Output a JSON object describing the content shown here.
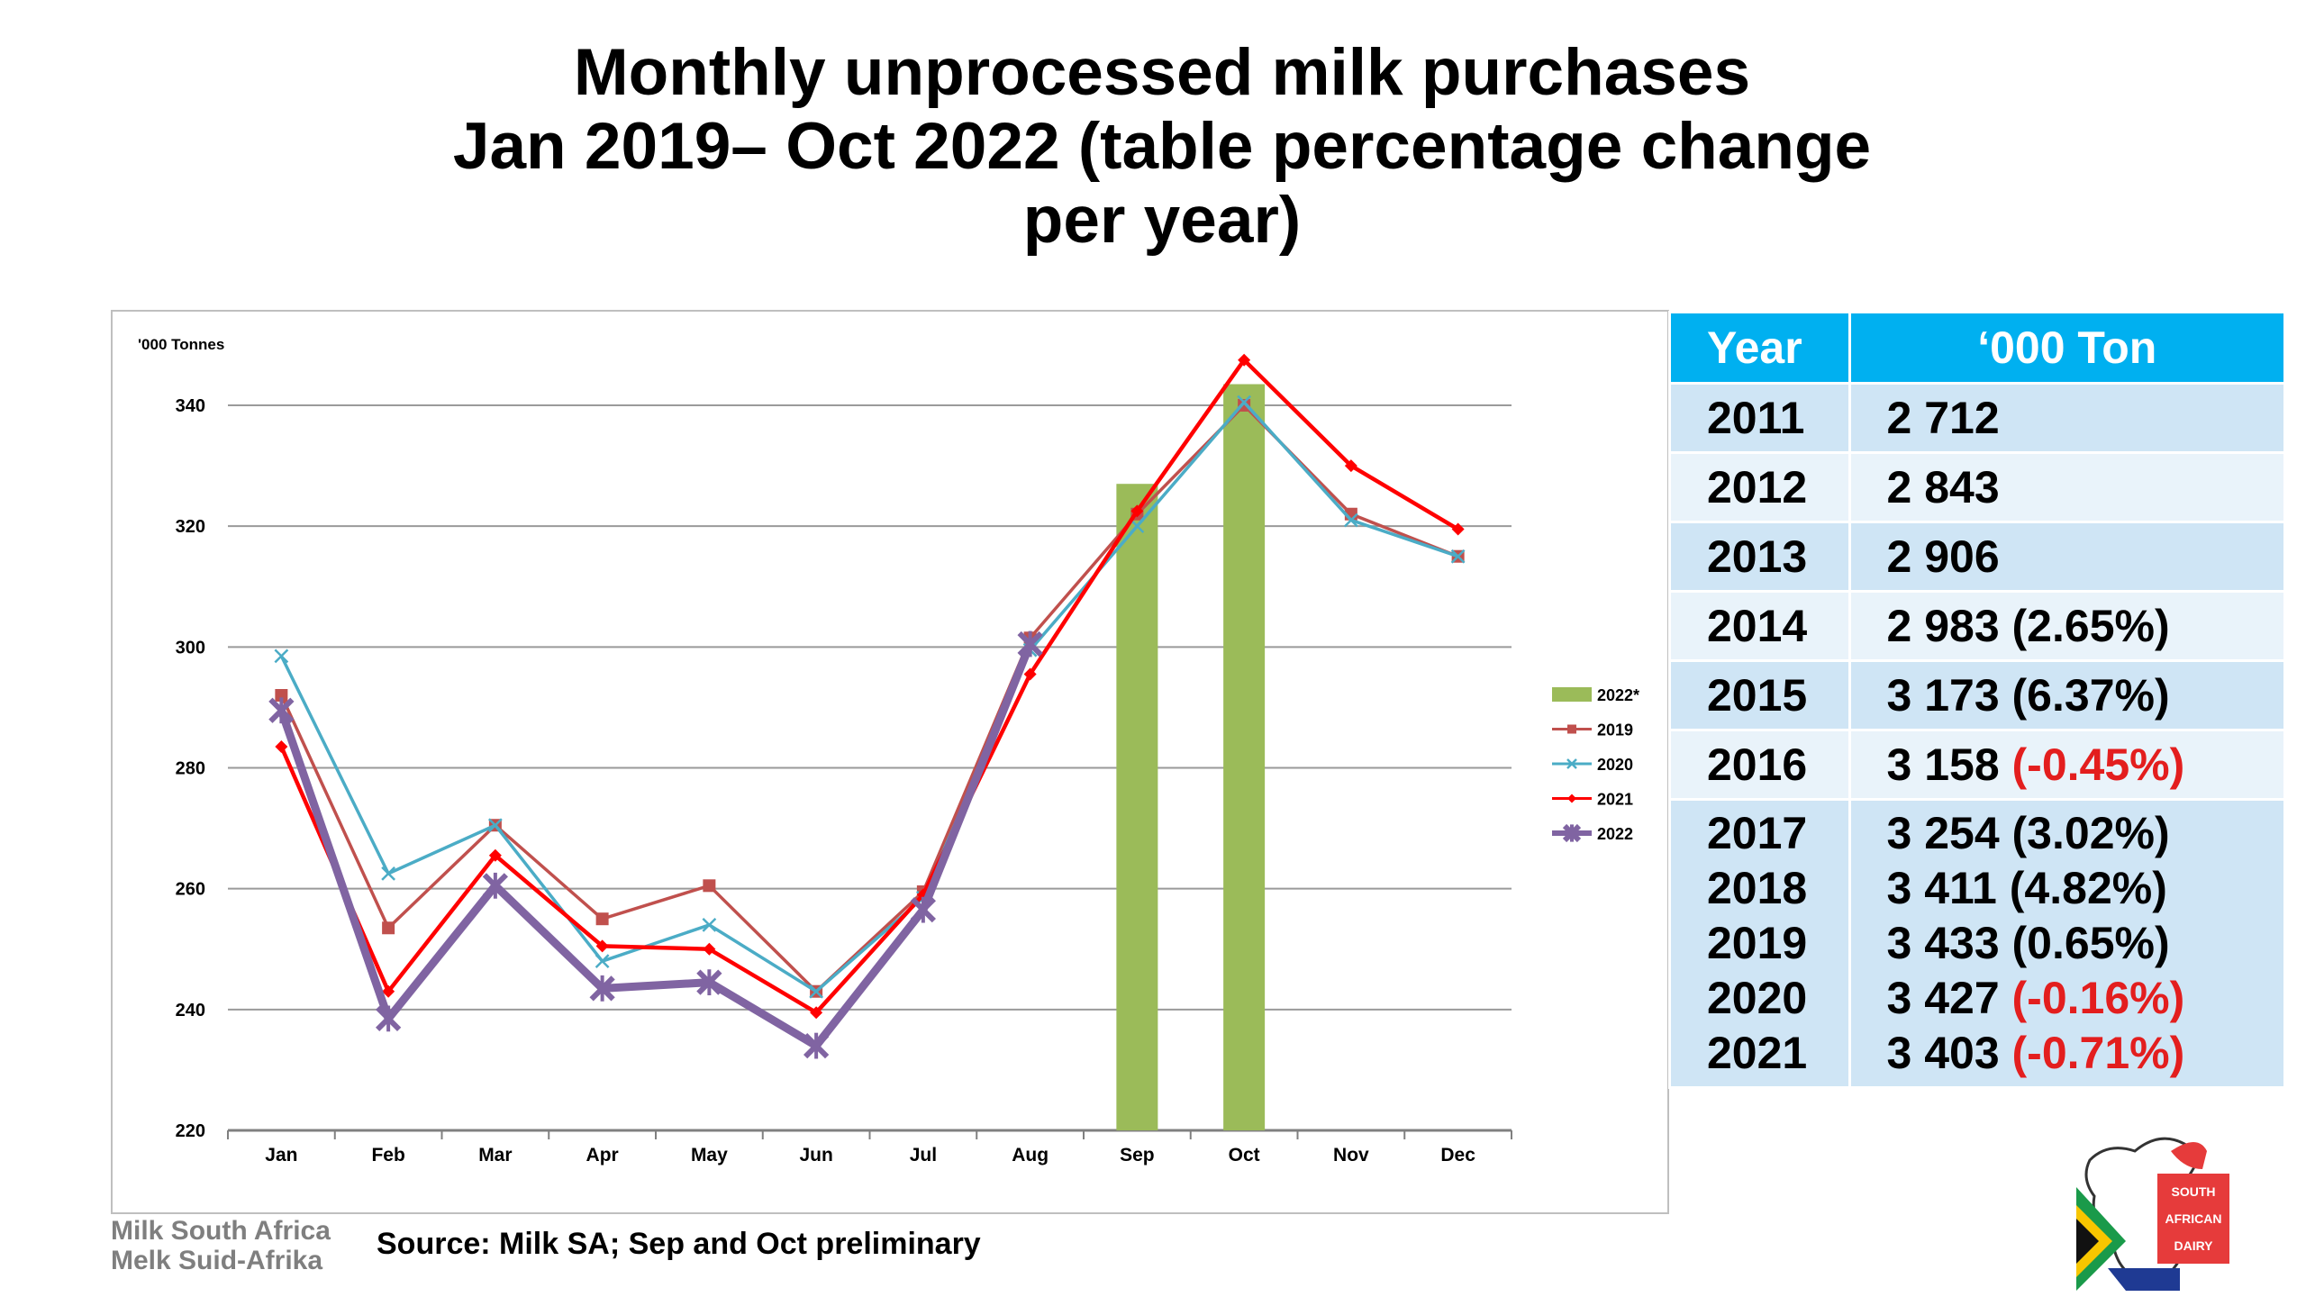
{
  "title": {
    "line1": "Monthly unprocessed milk purchases",
    "line2": "Jan 2019– Oct 2022 (table percentage change",
    "line3": "per year)"
  },
  "chart_data": {
    "type": "line",
    "ylabel": "'000 Tonnes",
    "ylim": [
      220,
      345
    ],
    "yticks": [
      220,
      240,
      260,
      280,
      300,
      320,
      340
    ],
    "grid": true,
    "legend_position": "right",
    "categories": [
      "Jan",
      "Feb",
      "Mar",
      "Apr",
      "May",
      "Jun",
      "Jul",
      "Aug",
      "Sep",
      "Oct",
      "Nov",
      "Dec"
    ],
    "series": [
      {
        "name": "2022*",
        "kind": "bar",
        "color": "#9bbb59",
        "values": [
          null,
          null,
          null,
          null,
          null,
          null,
          null,
          null,
          327,
          343.5,
          null,
          null
        ]
      },
      {
        "name": "2019",
        "kind": "line",
        "color": "#c0504d",
        "marker": "square",
        "values": [
          292,
          253.5,
          270.5,
          255,
          260.5,
          243,
          259.5,
          301.5,
          322,
          340,
          322,
          315
        ]
      },
      {
        "name": "2020",
        "kind": "line",
        "color": "#4bacc6",
        "marker": "x",
        "values": [
          298.5,
          262.5,
          270.5,
          248,
          254,
          243,
          258.5,
          299.5,
          320,
          340.5,
          321,
          315
        ]
      },
      {
        "name": "2021",
        "kind": "line",
        "color": "#ff0000",
        "marker": "diamond",
        "values": [
          283.5,
          243,
          265.5,
          250.5,
          250,
          239.5,
          259,
          295.5,
          322.5,
          347.5,
          330,
          319.5
        ]
      },
      {
        "name": "2022",
        "kind": "line",
        "color": "#8064a2",
        "marker": "x",
        "thick": true,
        "values": [
          289.5,
          238.5,
          260.5,
          243.5,
          244.5,
          234,
          256.5,
          300.5,
          null,
          null,
          null,
          null
        ]
      }
    ]
  },
  "table": {
    "headers": [
      "Year",
      "‘000 Ton"
    ],
    "rows": [
      {
        "year": "2011",
        "value": "2 712",
        "pct": "",
        "neg": false
      },
      {
        "year": "2012",
        "value": "2 843",
        "pct": "",
        "neg": false
      },
      {
        "year": "2013",
        "value": "2 906",
        "pct": "",
        "neg": false
      },
      {
        "year": "2014",
        "value": "2 983",
        "pct": "(2.65%)",
        "neg": false
      },
      {
        "year": "2015",
        "value": "3 173",
        "pct": "(6.37%)",
        "neg": false
      },
      {
        "year": "2016",
        "value": "3 158",
        "pct": "(-0.45%)",
        "neg": true
      }
    ],
    "group": [
      {
        "year": "2017",
        "value": "3 254",
        "pct": "(3.02%)",
        "neg": false
      },
      {
        "year": "2018",
        "value": "3 411",
        "pct": "(4.82%)",
        "neg": false
      },
      {
        "year": "2019",
        "value": "3 433",
        "pct": "(0.65%)",
        "neg": false
      },
      {
        "year": "2020",
        "value": "3 427",
        "pct": "(-0.16%)",
        "neg": true
      },
      {
        "year": "2021",
        "value": "3 403",
        "pct": "(-0.71%)",
        "neg": true
      }
    ]
  },
  "footer": {
    "logo_line1": "Milk South Africa",
    "logo_line2": "Melk Suid-Afrika",
    "source": "Source:  Milk SA; Sep and Oct preliminary",
    "badge": [
      "SOUTH",
      "AFRICAN",
      "DAIRY"
    ]
  }
}
